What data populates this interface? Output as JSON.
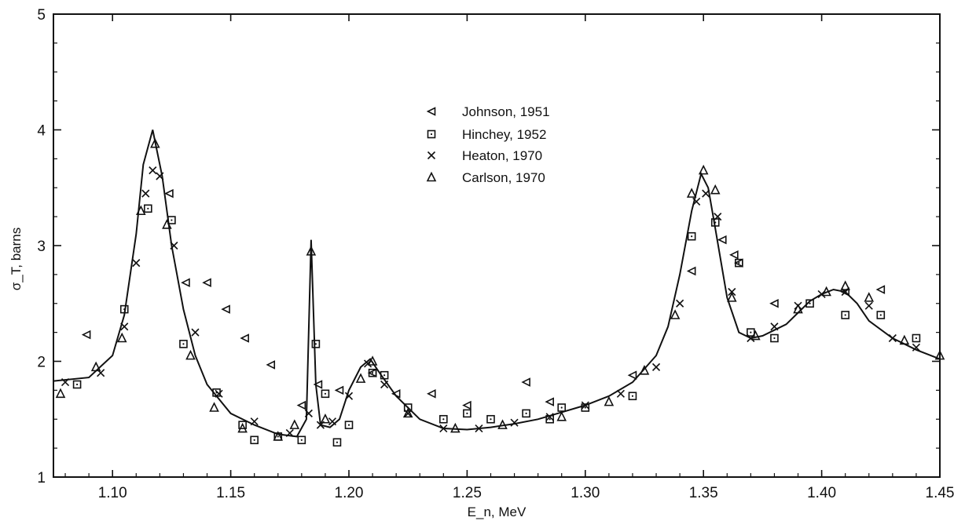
{
  "chart_data": {
    "type": "scatter",
    "title": "",
    "xlabel": "E_n, MeV",
    "ylabel": "σ_T, barns",
    "xlim": [
      1.075,
      1.45
    ],
    "ylim": [
      1,
      5
    ],
    "x_ticks": [
      "1.10",
      "1.15",
      "1.20",
      "1.25",
      "1.30",
      "1.35",
      "1.40",
      "1.45"
    ],
    "x_tick_values": [
      1.1,
      1.15,
      1.2,
      1.25,
      1.3,
      1.35,
      1.4,
      1.45
    ],
    "y_ticks": [
      "1",
      "2",
      "3",
      "4",
      "5"
    ],
    "y_tick_values": [
      1,
      2,
      3,
      4,
      5
    ],
    "grid": false,
    "legend_position": "top-center",
    "fit_curve": {
      "x": [
        1.075,
        1.09,
        1.1,
        1.105,
        1.11,
        1.113,
        1.117,
        1.121,
        1.125,
        1.13,
        1.135,
        1.14,
        1.15,
        1.16,
        1.17,
        1.178,
        1.182,
        1.184,
        1.186,
        1.188,
        1.192,
        1.196,
        1.2,
        1.205,
        1.209,
        1.213,
        1.22,
        1.23,
        1.24,
        1.25,
        1.26,
        1.27,
        1.28,
        1.29,
        1.3,
        1.31,
        1.32,
        1.33,
        1.335,
        1.34,
        1.345,
        1.349,
        1.352,
        1.355,
        1.36,
        1.365,
        1.37,
        1.375,
        1.38,
        1.385,
        1.39,
        1.395,
        1.4,
        1.405,
        1.41,
        1.415,
        1.42,
        1.43,
        1.44,
        1.45
      ],
      "y": [
        1.83,
        1.86,
        2.05,
        2.4,
        3.1,
        3.7,
        4.0,
        3.6,
        3.0,
        2.45,
        2.05,
        1.8,
        1.55,
        1.45,
        1.37,
        1.35,
        1.5,
        3.05,
        1.8,
        1.45,
        1.43,
        1.5,
        1.75,
        1.95,
        2.02,
        1.9,
        1.7,
        1.5,
        1.42,
        1.41,
        1.43,
        1.46,
        1.5,
        1.56,
        1.62,
        1.7,
        1.82,
        2.05,
        2.3,
        2.75,
        3.3,
        3.62,
        3.5,
        3.15,
        2.55,
        2.25,
        2.2,
        2.22,
        2.27,
        2.32,
        2.42,
        2.52,
        2.58,
        2.62,
        2.6,
        2.5,
        2.35,
        2.2,
        2.1,
        2.02
      ]
    },
    "series": [
      {
        "name": "Johnson, 1951",
        "marker": "left-triangle",
        "x": [
          1.089,
          1.124,
          1.131,
          1.14,
          1.148,
          1.156,
          1.167,
          1.18,
          1.187,
          1.196,
          1.21,
          1.22,
          1.235,
          1.25,
          1.275,
          1.285,
          1.32,
          1.345,
          1.358,
          1.363,
          1.365,
          1.38,
          1.41,
          1.425
        ],
        "y": [
          2.23,
          3.45,
          2.68,
          2.68,
          2.45,
          2.2,
          1.97,
          1.62,
          1.8,
          1.75,
          1.9,
          1.72,
          1.72,
          1.62,
          1.82,
          1.65,
          1.88,
          2.78,
          3.05,
          2.92,
          2.85,
          2.5,
          2.6,
          2.62
        ]
      },
      {
        "name": "Hinchey, 1952",
        "marker": "square-dot",
        "x": [
          1.085,
          1.105,
          1.115,
          1.125,
          1.13,
          1.144,
          1.155,
          1.16,
          1.17,
          1.18,
          1.186,
          1.19,
          1.195,
          1.2,
          1.21,
          1.215,
          1.225,
          1.24,
          1.25,
          1.26,
          1.275,
          1.285,
          1.29,
          1.3,
          1.32,
          1.345,
          1.355,
          1.365,
          1.37,
          1.38,
          1.395,
          1.41,
          1.425,
          1.44
        ],
        "y": [
          1.8,
          2.45,
          3.32,
          3.22,
          2.15,
          1.73,
          1.45,
          1.32,
          1.35,
          1.32,
          2.15,
          1.72,
          1.3,
          1.45,
          1.9,
          1.88,
          1.6,
          1.5,
          1.55,
          1.5,
          1.55,
          1.5,
          1.6,
          1.6,
          1.7,
          3.08,
          3.2,
          2.85,
          2.25,
          2.2,
          2.5,
          2.4,
          2.4,
          2.2
        ]
      },
      {
        "name": "Heaton, 1970",
        "marker": "cross",
        "x": [
          1.08,
          1.095,
          1.105,
          1.11,
          1.114,
          1.117,
          1.12,
          1.126,
          1.135,
          1.145,
          1.16,
          1.175,
          1.183,
          1.188,
          1.193,
          1.2,
          1.208,
          1.215,
          1.225,
          1.24,
          1.255,
          1.27,
          1.285,
          1.3,
          1.315,
          1.33,
          1.34,
          1.347,
          1.351,
          1.356,
          1.362,
          1.37,
          1.38,
          1.39,
          1.4,
          1.41,
          1.42,
          1.43,
          1.44
        ],
        "y": [
          1.82,
          1.9,
          2.3,
          2.85,
          3.45,
          3.65,
          3.6,
          3.0,
          2.25,
          1.72,
          1.48,
          1.38,
          1.55,
          1.45,
          1.48,
          1.7,
          1.98,
          1.8,
          1.55,
          1.42,
          1.42,
          1.47,
          1.52,
          1.62,
          1.72,
          1.95,
          2.5,
          3.38,
          3.45,
          3.25,
          2.6,
          2.2,
          2.3,
          2.48,
          2.58,
          2.6,
          2.48,
          2.2,
          2.12
        ]
      },
      {
        "name": "Carlson, 1970",
        "marker": "triangle",
        "x": [
          1.078,
          1.093,
          1.104,
          1.112,
          1.118,
          1.123,
          1.133,
          1.143,
          1.155,
          1.17,
          1.177,
          1.184,
          1.19,
          1.205,
          1.21,
          1.225,
          1.245,
          1.265,
          1.29,
          1.31,
          1.325,
          1.338,
          1.345,
          1.35,
          1.355,
          1.362,
          1.372,
          1.39,
          1.402,
          1.41,
          1.42,
          1.435,
          1.45
        ],
        "y": [
          1.72,
          1.95,
          2.2,
          3.3,
          3.88,
          3.18,
          2.05,
          1.6,
          1.42,
          1.35,
          1.45,
          2.95,
          1.5,
          1.85,
          2.0,
          1.55,
          1.42,
          1.45,
          1.52,
          1.65,
          1.92,
          2.4,
          3.45,
          3.65,
          3.48,
          2.55,
          2.22,
          2.45,
          2.6,
          2.65,
          2.55,
          2.18,
          2.05
        ]
      }
    ]
  }
}
